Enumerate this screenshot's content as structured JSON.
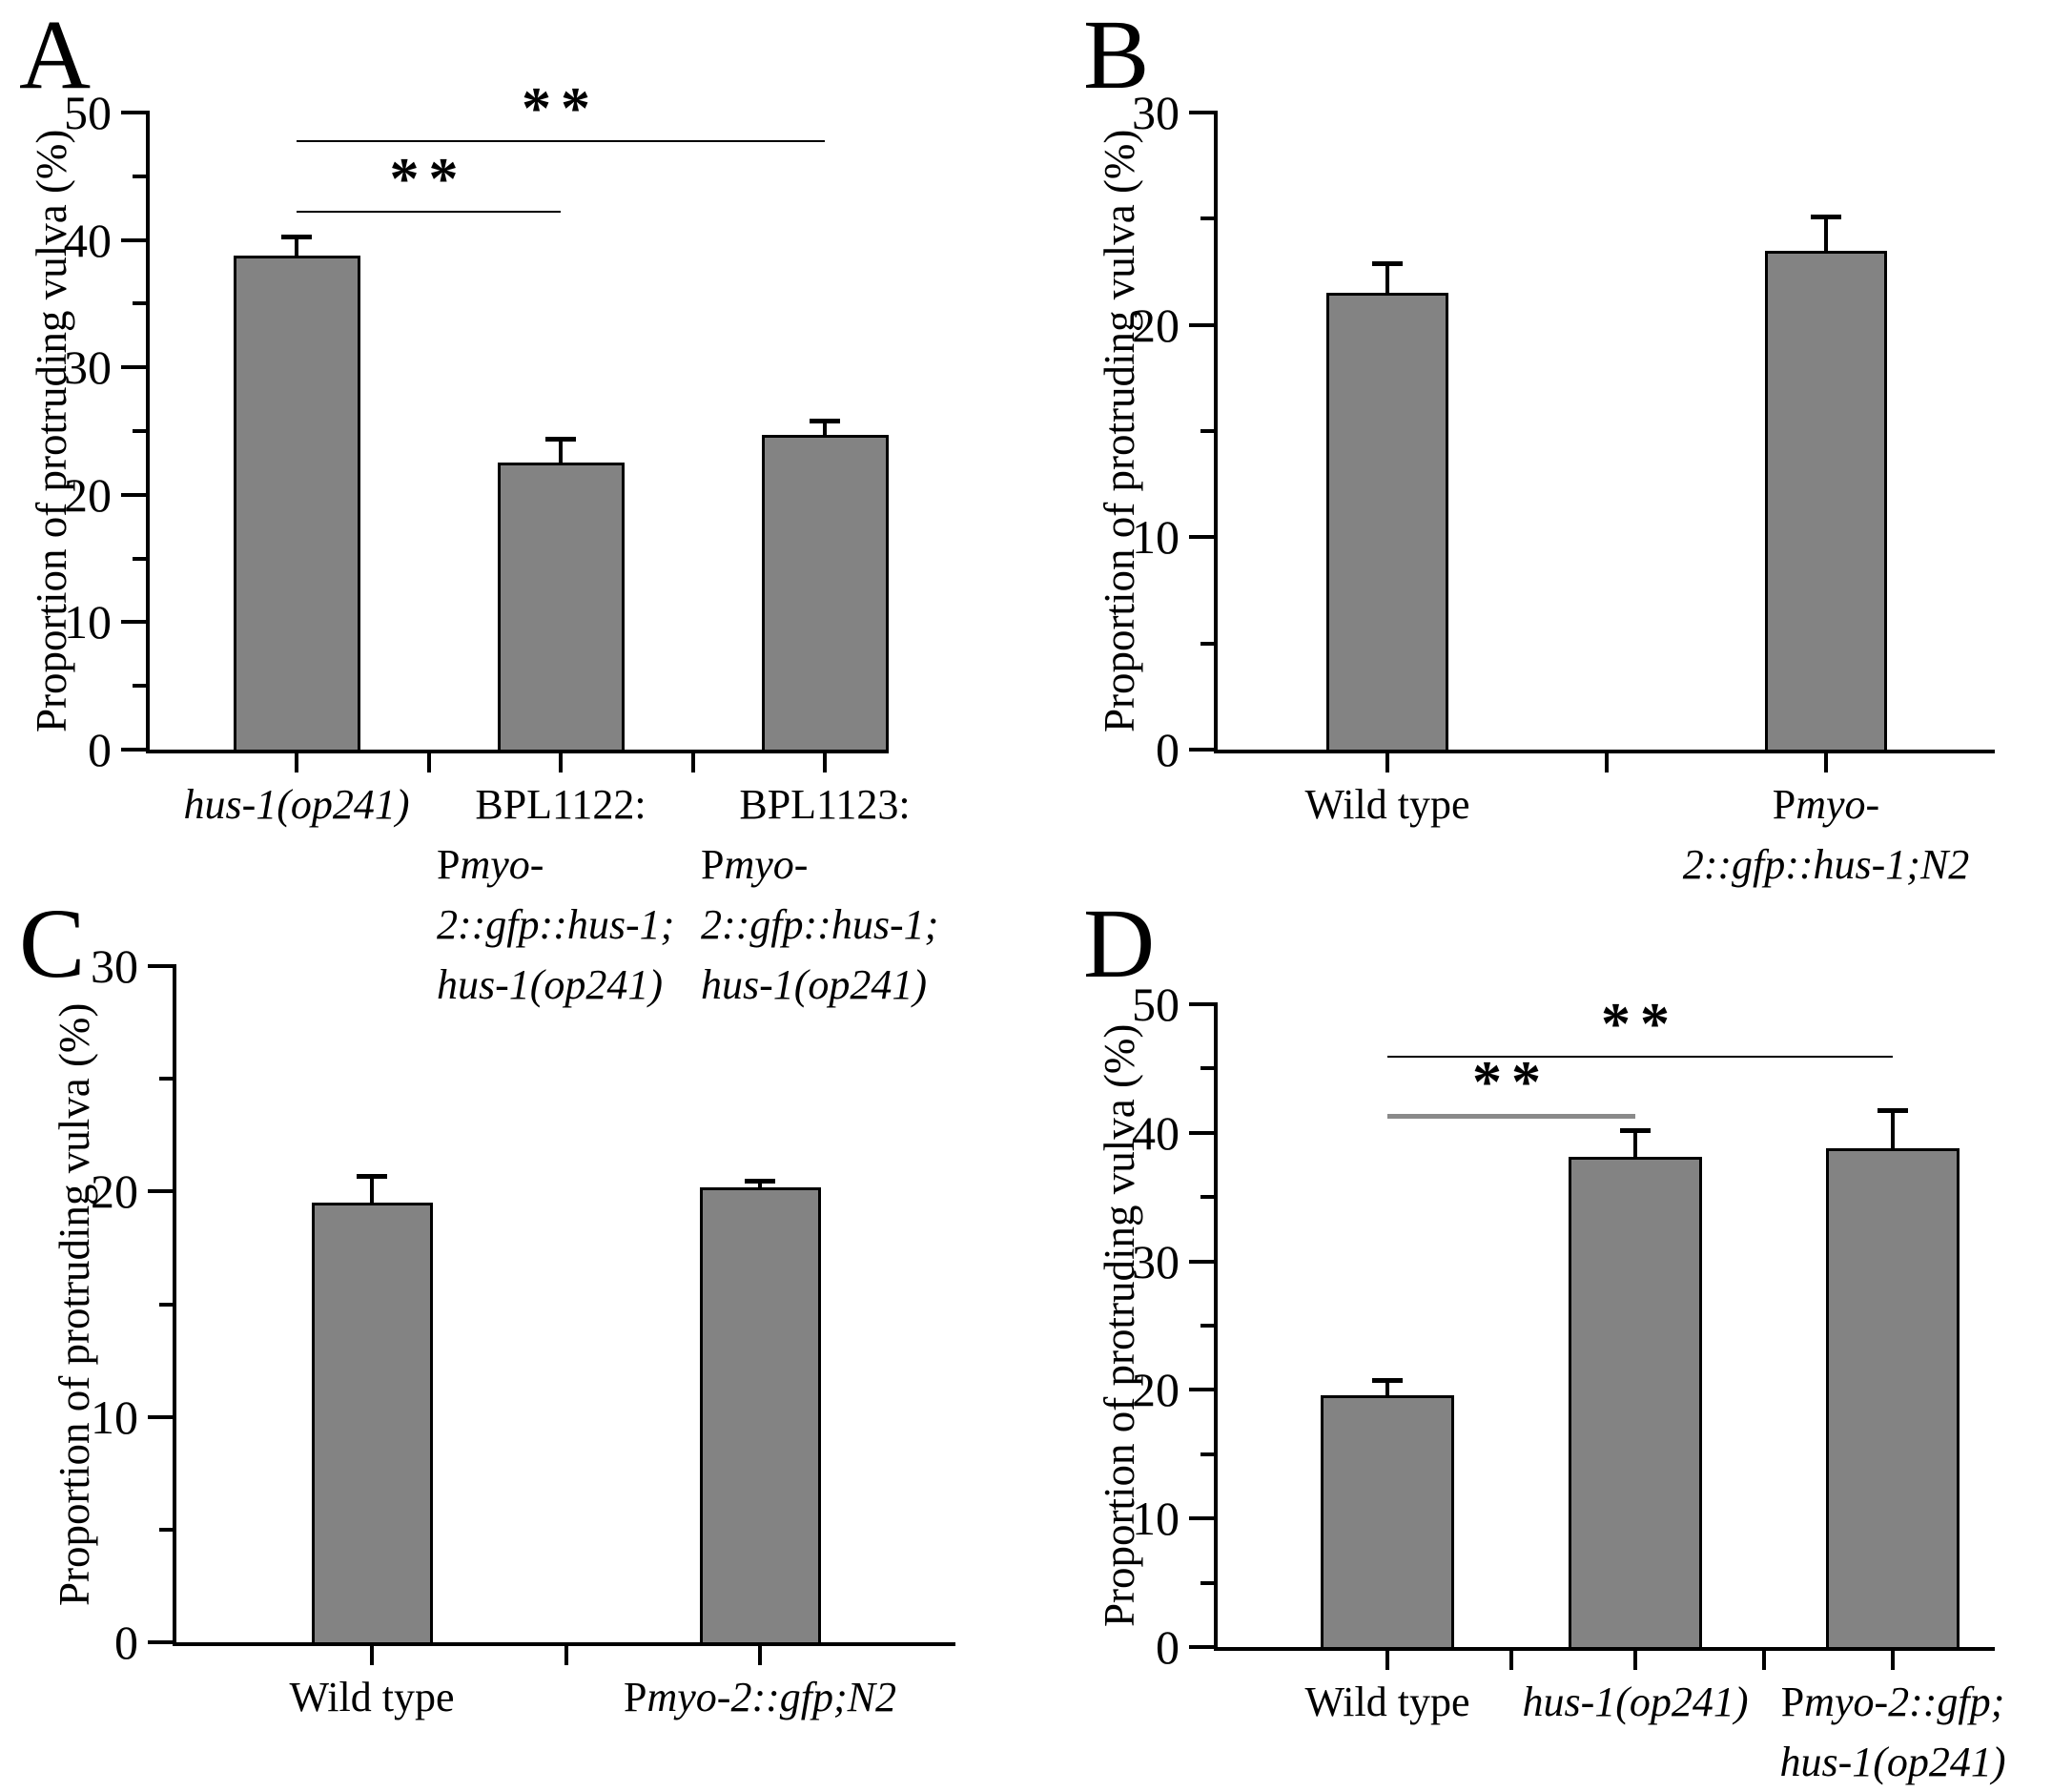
{
  "figure_title": "",
  "chart_data": [
    {
      "panel_label": "A",
      "type": "bar",
      "title": "",
      "ylabel": "Proportion of protruding vulva (%)",
      "xlabel": "",
      "ylim": [
        0,
        50
      ],
      "ytick_major": 10,
      "ytick_minor": 5,
      "grid": false,
      "legend": "none",
      "bar_color": "#838383",
      "bar_border_color": "#000000",
      "categories": [
        "hus-1(op241)",
        "BPL1122: Pmyo-2::gfp::hus-1; hus-1(op241)",
        "BPL1123: Pmyo-2::gfp::hus-1; hus-1(op241)"
      ],
      "values": [
        38.8,
        22.5,
        24.7
      ],
      "errors_plus": [
        1.5,
        1.9,
        1.1
      ],
      "category_lines": [
        [
          {
            "align": "center",
            "runs": [
              {
                "t": "hus-1(op241)",
                "i": true
              }
            ]
          }
        ],
        [
          {
            "align": "center",
            "runs": [
              {
                "t": "BPL1122:",
                "i": false
              }
            ]
          },
          {
            "align": "left",
            "runs": [
              {
                "t": "P",
                "i": false
              },
              {
                "t": "myo-2::gfp::hus-1;",
                "i": true
              }
            ]
          },
          {
            "align": "left",
            "runs": [
              {
                "t": "hus-1(op241)",
                "i": true
              }
            ]
          }
        ],
        [
          {
            "align": "center",
            "runs": [
              {
                "t": "BPL1123:",
                "i": false
              }
            ]
          },
          {
            "align": "left",
            "runs": [
              {
                "t": "P",
                "i": false
              },
              {
                "t": "myo-2::gfp::hus-1;",
                "i": true
              }
            ]
          },
          {
            "align": "left",
            "runs": [
              {
                "t": "hus-1(op241)",
                "i": true
              }
            ]
          }
        ]
      ],
      "significance": [
        {
          "from": 0,
          "to": 1,
          "y": 42.3,
          "label": "**",
          "color": "#000000",
          "thickness": 2
        },
        {
          "from": 0,
          "to": 2,
          "y": 47.8,
          "label": "**",
          "color": "#000000",
          "thickness": 2
        }
      ]
    },
    {
      "panel_label": "B",
      "type": "bar",
      "title": "",
      "ylabel": "Proportion of protruding vulva (%)",
      "xlabel": "",
      "ylim": [
        0,
        30
      ],
      "ytick_major": 10,
      "ytick_minor": 5,
      "grid": false,
      "legend": "none",
      "bar_color": "#838383",
      "bar_border_color": "#000000",
      "categories": [
        "Wild type",
        "Pmyo-2::gfp::hus-1;N2"
      ],
      "values": [
        21.5,
        23.5
      ],
      "errors_plus": [
        1.4,
        1.6
      ],
      "category_lines": [
        [
          {
            "align": "center",
            "runs": [
              {
                "t": "Wild type",
                "i": false
              }
            ]
          }
        ],
        [
          {
            "align": "center",
            "runs": [
              {
                "t": "P",
                "i": false
              },
              {
                "t": "myo-2::gfp::hus-1;N2",
                "i": true
              }
            ]
          }
        ]
      ],
      "significance": []
    },
    {
      "panel_label": "C",
      "type": "bar",
      "title": "",
      "ylabel": "Proportion of protruding vulva (%)",
      "xlabel": "",
      "ylim": [
        0,
        30
      ],
      "ytick_major": 10,
      "ytick_minor": 5,
      "grid": false,
      "legend": "none",
      "bar_color": "#838383",
      "bar_border_color": "#000000",
      "categories": [
        "Wild type",
        "Pmyo-2::gfp;N2"
      ],
      "values": [
        19.5,
        20.2
      ],
      "errors_plus": [
        1.2,
        0.3
      ],
      "category_lines": [
        [
          {
            "align": "center",
            "runs": [
              {
                "t": "Wild type",
                "i": false
              }
            ]
          }
        ],
        [
          {
            "align": "center",
            "runs": [
              {
                "t": "P",
                "i": false
              },
              {
                "t": "myo-2::gfp;N2",
                "i": true
              }
            ]
          }
        ]
      ],
      "significance": []
    },
    {
      "panel_label": "D",
      "type": "bar",
      "title": "",
      "ylabel": "Proportion of protruding vulva (%)",
      "xlabel": "",
      "ylim": [
        0,
        50
      ],
      "ytick_major": 10,
      "ytick_minor": 5,
      "grid": false,
      "legend": "none",
      "bar_color": "#838383",
      "bar_border_color": "#000000",
      "categories": [
        "Wild type",
        "hus-1(op241)",
        "Pmyo-2::gfp; hus-1(op241)"
      ],
      "values": [
        19.6,
        38.1,
        38.8
      ],
      "errors_plus": [
        1.2,
        2.1,
        3.0
      ],
      "category_lines": [
        [
          {
            "align": "center",
            "runs": [
              {
                "t": "Wild type",
                "i": false
              }
            ]
          }
        ],
        [
          {
            "align": "center",
            "runs": [
              {
                "t": "hus-1(op241)",
                "i": true
              }
            ]
          }
        ],
        [
          {
            "align": "center",
            "runs": [
              {
                "t": "P",
                "i": false
              },
              {
                "t": "myo-2::gfp;",
                "i": true
              }
            ]
          },
          {
            "align": "center",
            "runs": [
              {
                "t": "hus-1(op241)",
                "i": true
              }
            ]
          }
        ]
      ],
      "significance": [
        {
          "from": 0,
          "to": 1,
          "y": 41.5,
          "label": "**",
          "color": "#8a8a8a",
          "thickness": 5
        },
        {
          "from": 0,
          "to": 2,
          "y": 46.0,
          "label": "**",
          "color": "#000000",
          "thickness": 2
        }
      ]
    }
  ]
}
